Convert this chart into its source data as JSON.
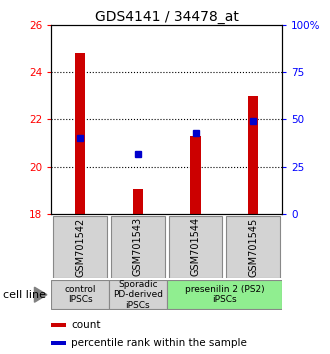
{
  "title": "GDS4141 / 34478_at",
  "samples": [
    "GSM701542",
    "GSM701543",
    "GSM701544",
    "GSM701545"
  ],
  "bar_values": [
    24.8,
    19.05,
    21.3,
    23.0
  ],
  "bar_base": 18.0,
  "percentile_values": [
    40,
    32,
    43,
    49
  ],
  "ylim_left": [
    18,
    26
  ],
  "ylim_right": [
    0,
    100
  ],
  "yticks_left": [
    18,
    20,
    22,
    24,
    26
  ],
  "yticks_right": [
    0,
    25,
    50,
    75,
    100
  ],
  "ytick_labels_right": [
    "0",
    "25",
    "50",
    "75",
    "100%"
  ],
  "bar_color": "#cc0000",
  "percentile_color": "#0000cc",
  "groups": [
    {
      "label": "control\nIPSCs",
      "samples": [
        0
      ],
      "color": "#d3d3d3"
    },
    {
      "label": "Sporadic\nPD-derived\niPSCs",
      "samples": [
        1
      ],
      "color": "#d3d3d3"
    },
    {
      "label": "presenilin 2 (PS2)\niPSCs",
      "samples": [
        2,
        3
      ],
      "color": "#90ee90"
    }
  ],
  "cell_line_label": "cell line",
  "legend_items": [
    {
      "color": "#cc0000",
      "label": "count"
    },
    {
      "color": "#0000cc",
      "label": "percentile rank within the sample"
    }
  ],
  "sample_box_color": "#d3d3d3",
  "sample_box_edge_color": "#888888"
}
